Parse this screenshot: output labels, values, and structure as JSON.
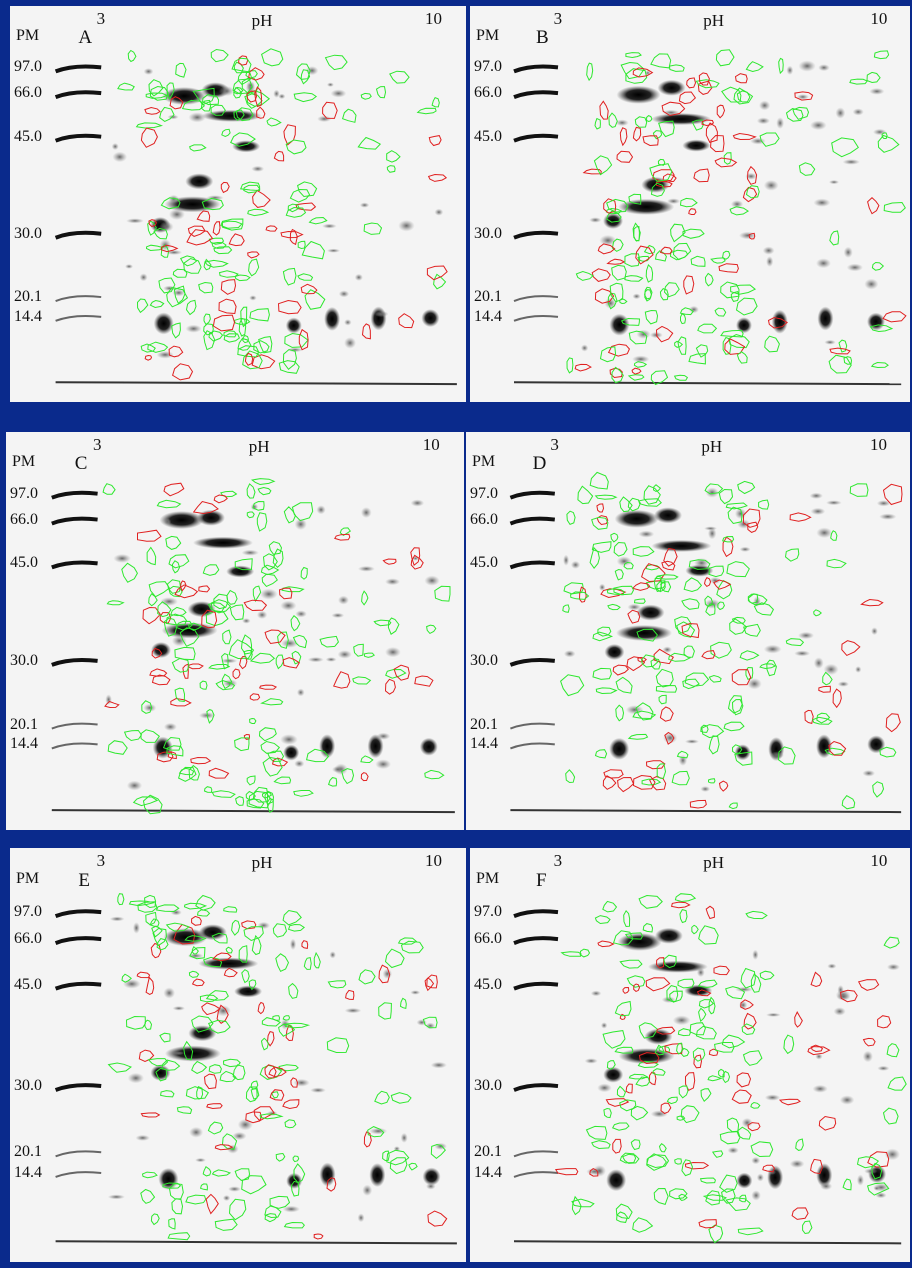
{
  "figure": {
    "axis_labels": {
      "ph": "pH",
      "pm": "PM",
      "ph_min": "3",
      "ph_max": "10"
    },
    "mw_markers": [
      "97.0",
      "66.0",
      "45.0",
      "30.0",
      "20.1",
      "14.4"
    ],
    "panels": [
      {
        "id": "A"
      },
      {
        "id": "B"
      },
      {
        "id": "C"
      },
      {
        "id": "D"
      },
      {
        "id": "E"
      },
      {
        "id": "F"
      }
    ],
    "colors": {
      "background": "#0a2a8c",
      "gel": "#f4f4f4",
      "outline_green": "#2ee82e",
      "outline_red": "#e02020"
    }
  }
}
